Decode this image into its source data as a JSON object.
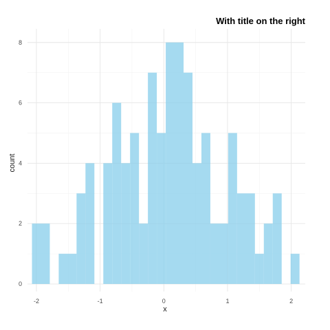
{
  "chart_data": {
    "type": "bar",
    "title": "With title on the right",
    "xlabel": "x",
    "ylabel": "count",
    "xlim": [
      -2.14,
      2.22
    ],
    "ylim": [
      -0.25,
      8.45
    ],
    "x_ticks": [
      -2,
      -1,
      0,
      1,
      2
    ],
    "x_tick_labels": [
      "-2",
      "-1",
      "0",
      "1",
      "2"
    ],
    "y_ticks": [
      0,
      2,
      4,
      6,
      8
    ],
    "y_tick_labels": [
      "0",
      "2",
      "4",
      "6",
      "8"
    ],
    "grid": true,
    "bar_color": "#87CEEB",
    "bins": [
      {
        "x_start": -2.07,
        "x_end": -1.79,
        "count": 2
      },
      {
        "x_start": -1.65,
        "x_end": -1.37,
        "count": 1
      },
      {
        "x_start": -1.37,
        "x_end": -1.23,
        "count": 3
      },
      {
        "x_start": -1.23,
        "x_end": -1.09,
        "count": 4
      },
      {
        "x_start": -0.95,
        "x_end": -0.81,
        "count": 4
      },
      {
        "x_start": -0.81,
        "x_end": -0.67,
        "count": 6
      },
      {
        "x_start": -0.67,
        "x_end": -0.53,
        "count": 4
      },
      {
        "x_start": -0.53,
        "x_end": -0.39,
        "count": 5
      },
      {
        "x_start": -0.39,
        "x_end": -0.25,
        "count": 2
      },
      {
        "x_start": -0.25,
        "x_end": -0.11,
        "count": 7
      },
      {
        "x_start": -0.11,
        "x_end": 0.03,
        "count": 5
      },
      {
        "x_start": 0.03,
        "x_end": 0.31,
        "count": 8
      },
      {
        "x_start": 0.31,
        "x_end": 0.45,
        "count": 7
      },
      {
        "x_start": 0.45,
        "x_end": 0.59,
        "count": 4
      },
      {
        "x_start": 0.59,
        "x_end": 0.73,
        "count": 5
      },
      {
        "x_start": 0.73,
        "x_end": 1.01,
        "count": 2
      },
      {
        "x_start": 1.01,
        "x_end": 1.15,
        "count": 5
      },
      {
        "x_start": 1.15,
        "x_end": 1.43,
        "count": 3
      },
      {
        "x_start": 1.43,
        "x_end": 1.57,
        "count": 1
      },
      {
        "x_start": 1.57,
        "x_end": 1.71,
        "count": 2
      },
      {
        "x_start": 1.71,
        "x_end": 1.85,
        "count": 3
      },
      {
        "x_start": 1.99,
        "x_end": 2.13,
        "count": 1
      }
    ]
  }
}
